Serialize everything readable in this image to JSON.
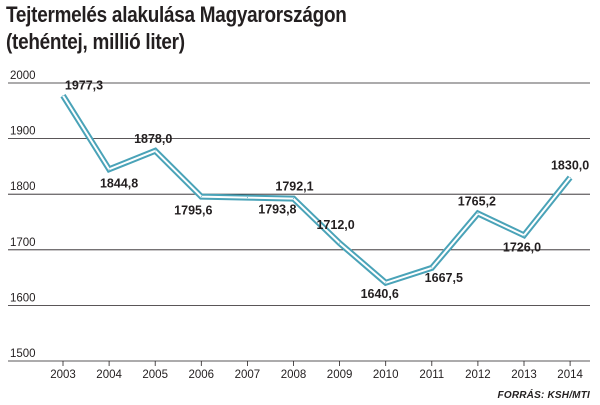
{
  "title": {
    "line1": "Tejtermelés alakulása Magyarországon",
    "line2": "(tehéntej, millió liter)"
  },
  "source": "FORRÁS: KSH/MTI",
  "chart_data": {
    "type": "line",
    "title": "Tejtermelés alakulása Magyarországon (tehéntej, millió liter)",
    "x": [
      "2003",
      "2004",
      "2005",
      "2006",
      "2007",
      "2008",
      "2009",
      "2010",
      "2011",
      "2012",
      "2013",
      "2014"
    ],
    "values": [
      1977.3,
      1844.8,
      1878.0,
      1795.6,
      1793.8,
      1792.1,
      1712.0,
      1640.6,
      1667.5,
      1765.2,
      1726.0,
      1830.0
    ],
    "value_labels": [
      "1977,3",
      "1844,8",
      "1878,0",
      "1795,6",
      "1793,8",
      "1792,1",
      "1712,0",
      "1640,6",
      "1667,5",
      "1765,2",
      "1726,0",
      "1830,0"
    ],
    "yticks": [
      "1500",
      "1600",
      "1700",
      "1800",
      "1900",
      "2000"
    ],
    "ylim": [
      1500,
      2000
    ],
    "grid": "horizontal",
    "colors": {
      "line_outer": "#4aa3b8",
      "line_inner": "#ffffff",
      "grid": "#231f20",
      "text": "#231f20"
    }
  }
}
